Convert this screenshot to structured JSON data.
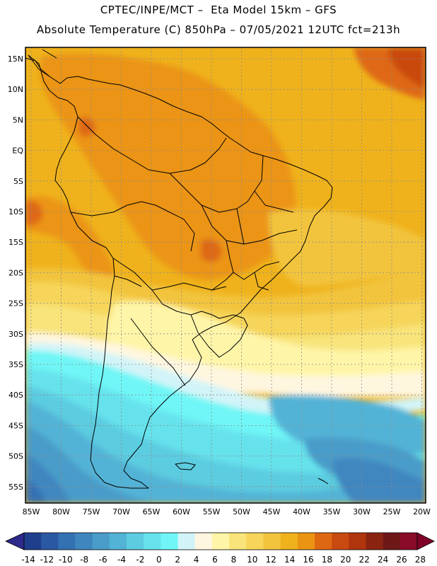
{
  "header": {
    "line1": "CPTEC/INPE/MCT –  Eta Model 15km – GFS",
    "line2": "Absolute Temperature (C) 850hPa – 07/05/2021 12UTC fct=213h"
  },
  "axes": {
    "lat_labels": [
      "15N",
      "10N",
      "5N",
      "EQ",
      "5S",
      "10S",
      "15S",
      "20S",
      "25S",
      "30S",
      "35S",
      "40S",
      "45S",
      "50S",
      "55S"
    ],
    "lon_labels": [
      "85W",
      "80W",
      "75W",
      "70W",
      "65W",
      "60W",
      "55W",
      "50W",
      "45W",
      "40W",
      "35W",
      "30W",
      "25W",
      "20W"
    ]
  },
  "colorbar": {
    "labels": [
      "-14",
      "-12",
      "-10",
      "-8",
      "-6",
      "-4",
      "-2",
      "0",
      "2",
      "4",
      "6",
      "8",
      "10",
      "12",
      "14",
      "16",
      "18",
      "20",
      "22",
      "24",
      "26",
      "28"
    ],
    "colors": [
      "#1f3f8c",
      "#2a58a3",
      "#3471b2",
      "#3f86bf",
      "#4a9cc9",
      "#52b3d6",
      "#5ccce0",
      "#66e2ec",
      "#70f6f6",
      "#d2f4f8",
      "#fff6e0",
      "#fff5a8",
      "#f8e47a",
      "#f6d55a",
      "#f2c43e",
      "#efb21c",
      "#eb9414",
      "#de6812",
      "#c94a10",
      "#b0340c",
      "#8a2410",
      "#6e1818",
      "#8a0a2a"
    ],
    "low_color": "#2e2a8c",
    "high_color": "#800028"
  },
  "map": {
    "frame_color": "#000000",
    "grid_color": "#8c8c8c",
    "coast_color": "#000000"
  }
}
